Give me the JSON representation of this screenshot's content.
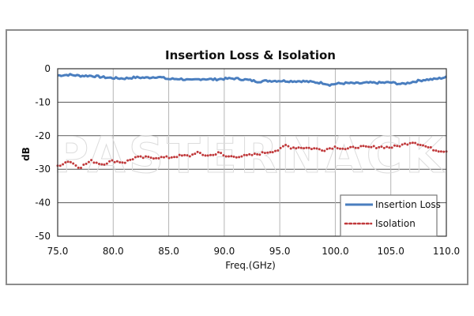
{
  "watermark": "PASTERNACK",
  "chart_data": {
    "type": "line",
    "title": "Insertion Loss & Isolation",
    "xlabel": "Freq.(GHz)",
    "ylabel": "dB",
    "xlim": [
      75,
      110
    ],
    "ylim": [
      -50,
      0
    ],
    "xticks": [
      75,
      80,
      85,
      90,
      95,
      100,
      105,
      110
    ],
    "xtick_labels": [
      "75.0",
      "80.0",
      "85.0",
      "90.0",
      "95.0",
      "100.0",
      "105.0",
      "110.0"
    ],
    "yticks": [
      0,
      -10,
      -20,
      -30,
      -40,
      -50
    ],
    "ytick_labels": [
      "0",
      "-10",
      "-20",
      "-30",
      "-40",
      "-50"
    ],
    "grid": true,
    "legend_position": "bottom-right",
    "series": [
      {
        "name": "Insertion Loss",
        "color": "#4a7ebf",
        "style": "solid",
        "x": [
          75,
          76,
          77,
          78,
          79,
          80,
          81,
          82,
          83,
          84,
          85,
          86,
          87,
          88,
          89,
          90,
          91,
          92,
          93,
          94,
          95,
          96,
          97,
          98,
          99,
          99.5,
          100,
          101,
          102,
          103,
          104,
          105,
          106,
          107,
          108,
          109,
          110
        ],
        "values": [
          -2.0,
          -1.8,
          -2.1,
          -2.1,
          -2.5,
          -2.8,
          -2.9,
          -2.6,
          -2.7,
          -2.4,
          -3.1,
          -3.0,
          -3.5,
          -3.0,
          -3.2,
          -3.0,
          -2.9,
          -3.3,
          -3.8,
          -3.6,
          -3.6,
          -3.7,
          -3.7,
          -4.0,
          -4.3,
          -4.8,
          -4.5,
          -4.3,
          -4.4,
          -4.2,
          -4.2,
          -4.1,
          -4.6,
          -3.9,
          -3.3,
          -3.1,
          -2.5
        ]
      },
      {
        "name": "Isolation",
        "color": "#c0393b",
        "style": "dotted",
        "x": [
          75,
          76,
          77,
          78,
          79,
          80,
          81,
          82,
          83,
          84,
          85,
          86,
          87,
          87.5,
          88,
          89,
          89.5,
          90,
          91,
          92,
          93,
          94,
          95,
          95.5,
          96,
          97,
          98,
          99,
          100,
          101,
          102,
          103,
          104,
          105,
          106,
          107,
          108,
          109,
          110
        ],
        "values": [
          -29.0,
          -27.5,
          -29.5,
          -27.5,
          -28.5,
          -27.5,
          -28.0,
          -26.5,
          -26.5,
          -26.5,
          -26.5,
          -26.0,
          -26.0,
          -24.8,
          -25.8,
          -25.8,
          -24.8,
          -26.2,
          -26.2,
          -26.0,
          -25.5,
          -24.8,
          -24.2,
          -22.8,
          -23.5,
          -23.5,
          -23.8,
          -24.2,
          -23.3,
          -24.0,
          -23.3,
          -23.5,
          -23.3,
          -23.5,
          -22.8,
          -21.8,
          -23.0,
          -24.3,
          -24.6
        ]
      }
    ]
  }
}
